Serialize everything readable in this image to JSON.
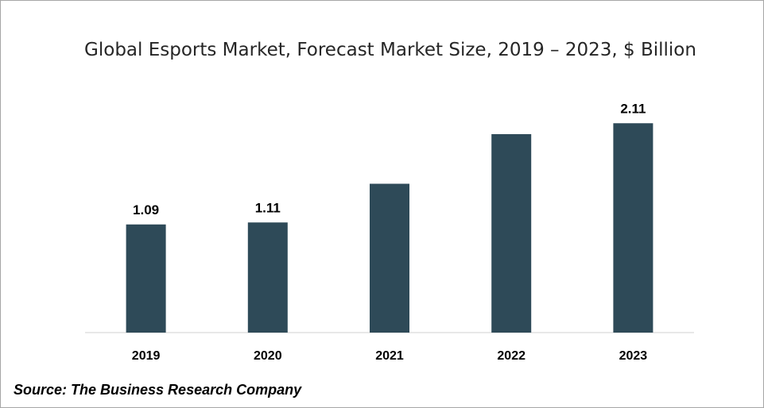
{
  "chart_data": {
    "type": "bar",
    "title": "Global Esports Market, Forecast Market Size, 2019 – 2023, $ Billion",
    "categories": [
      "2019",
      "2020",
      "2021",
      "2022",
      "2023"
    ],
    "values": [
      1.09,
      1.11,
      1.5,
      2.0,
      2.11
    ],
    "data_labels": [
      "1.09",
      "1.11",
      "",
      "",
      "2.11"
    ],
    "xlabel": "",
    "ylabel": "",
    "ylim": [
      0,
      2.4
    ],
    "grid": false,
    "legend": "none",
    "bar_color": "#2e4a58"
  },
  "footer": {
    "source": "Source: The Business Research Company"
  }
}
